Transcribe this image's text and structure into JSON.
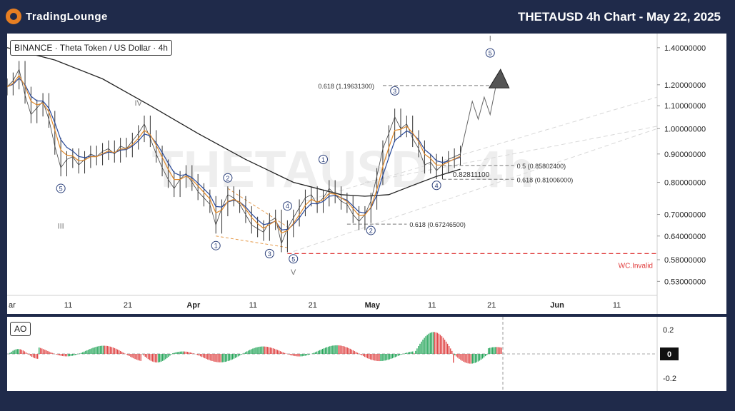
{
  "header": {
    "brand": "TradingLounge",
    "title": "THETAUSD 4h Chart - May 22, 2025"
  },
  "symbol_label": "BINANCE · Theta Token / US Dollar · 4h",
  "watermark": "THETAUSD · 4h",
  "indicator_label": "AO",
  "chart_data": {
    "type": "line",
    "title": "THETAUSD 4h Chart - May 22, 2025",
    "scale": "log",
    "ylim": [
      0.5,
      1.45
    ],
    "y_ticks": [
      "1.40000000",
      "1.20000000",
      "1.10000000",
      "1.00000000",
      "0.90000000",
      "0.80000000",
      "0.70000000",
      "0.64000000",
      "0.58000000",
      "0.53000000"
    ],
    "y_tick_values": [
      1.4,
      1.2,
      1.1,
      1.0,
      0.9,
      0.8,
      0.7,
      0.64,
      0.58,
      0.53
    ],
    "x_ticks": [
      "ar",
      "11",
      "21",
      "Apr",
      "11",
      "21",
      "May",
      "11",
      "21",
      "Jun",
      "11"
    ],
    "x_tick_days": [
      0,
      10,
      20,
      31,
      41,
      51,
      61,
      71,
      81,
      92,
      102
    ],
    "xlim_days": [
      0,
      109
    ],
    "series": [
      {
        "values_note": "close",
        "points": [
          [
            0,
            1.19
          ],
          [
            1,
            1.22
          ],
          [
            2,
            1.28
          ],
          [
            3,
            1.15
          ],
          [
            4,
            1.06
          ],
          [
            5,
            1.09
          ],
          [
            6,
            1.12
          ],
          [
            7,
            1.04
          ],
          [
            8,
            0.93
          ],
          [
            9,
            0.85
          ],
          [
            10,
            0.88
          ],
          [
            11,
            0.89
          ],
          [
            12,
            0.86
          ],
          [
            13,
            0.88
          ],
          [
            14,
            0.9
          ],
          [
            15,
            0.89
          ],
          [
            16,
            0.91
          ],
          [
            17,
            0.92
          ],
          [
            18,
            0.9
          ],
          [
            19,
            0.93
          ],
          [
            20,
            0.92
          ],
          [
            21,
            0.95
          ],
          [
            22,
            0.98
          ],
          [
            23,
            1.02
          ],
          [
            24,
            0.96
          ],
          [
            25,
            0.9
          ],
          [
            26,
            0.85
          ],
          [
            27,
            0.81
          ],
          [
            28,
            0.78
          ],
          [
            29,
            0.81
          ],
          [
            30,
            0.83
          ],
          [
            31,
            0.8
          ],
          [
            32,
            0.77
          ],
          [
            33,
            0.75
          ],
          [
            34,
            0.73
          ],
          [
            35,
            0.67
          ],
          [
            36,
            0.72
          ],
          [
            37,
            0.76
          ],
          [
            38,
            0.75
          ],
          [
            39,
            0.73
          ],
          [
            40,
            0.7
          ],
          [
            41,
            0.67
          ],
          [
            42,
            0.66
          ],
          [
            43,
            0.65
          ],
          [
            44,
            0.68
          ],
          [
            45,
            0.69
          ],
          [
            46,
            0.62
          ],
          [
            47,
            0.66
          ],
          [
            48,
            0.69
          ],
          [
            49,
            0.72
          ],
          [
            50,
            0.75
          ],
          [
            51,
            0.76
          ],
          [
            52,
            0.73
          ],
          [
            53,
            0.75
          ],
          [
            54,
            0.78
          ],
          [
            55,
            0.76
          ],
          [
            56,
            0.74
          ],
          [
            57,
            0.73
          ],
          [
            58,
            0.7
          ],
          [
            59,
            0.68
          ],
          [
            60,
            0.7
          ],
          [
            61,
            0.74
          ],
          [
            62,
            0.82
          ],
          [
            63,
            0.92
          ],
          [
            64,
            0.98
          ],
          [
            65,
            1.05
          ],
          [
            66,
            1.0
          ],
          [
            67,
            1.02
          ],
          [
            68,
            0.96
          ],
          [
            69,
            0.92
          ],
          [
            70,
            0.86
          ],
          [
            71,
            0.87
          ],
          [
            72,
            0.84
          ],
          [
            73,
            0.86
          ],
          [
            74,
            0.88
          ],
          [
            75,
            0.89
          ],
          [
            76,
            0.9
          ]
        ]
      },
      {
        "values_note": "moving-average-long",
        "points": [
          [
            0,
            1.4
          ],
          [
            8,
            1.33
          ],
          [
            16,
            1.23
          ],
          [
            24,
            1.1
          ],
          [
            32,
            0.98
          ],
          [
            40,
            0.88
          ],
          [
            48,
            0.8
          ],
          [
            56,
            0.76
          ],
          [
            60,
            0.755
          ],
          [
            64,
            0.76
          ],
          [
            68,
            0.79
          ],
          [
            72,
            0.82
          ],
          [
            76,
            0.845
          ]
        ]
      }
    ],
    "annotations": {
      "wave_labels": [
        {
          "text": "IV",
          "day": 22,
          "price": 1.1,
          "color": "#777777"
        },
        {
          "text": "III",
          "day": 9,
          "price": 0.66,
          "color": "#777777"
        },
        {
          "text": "V",
          "day": 48,
          "price": 0.545,
          "color": "#777777"
        },
        {
          "text": "I",
          "day": 81,
          "price": 1.44,
          "color": "#777777"
        }
      ],
      "circled_labels": [
        {
          "text": "5",
          "day": 9,
          "price": 0.78
        },
        {
          "text": "1",
          "day": 35,
          "price": 0.615
        },
        {
          "text": "2",
          "day": 37,
          "price": 0.815
        },
        {
          "text": "3",
          "day": 44,
          "price": 0.595
        },
        {
          "text": "4",
          "day": 47,
          "price": 0.725
        },
        {
          "text": "5",
          "day": 48,
          "price": 0.582
        },
        {
          "text": "1",
          "day": 53,
          "price": 0.88
        },
        {
          "text": "2",
          "day": 61,
          "price": 0.655
        },
        {
          "text": "3",
          "day": 65,
          "price": 1.17
        },
        {
          "text": "4",
          "day": 72,
          "price": 0.79
        },
        {
          "text": "5",
          "day": 81,
          "price": 1.37
        }
      ],
      "fib_levels": [
        {
          "text": "0.618 (1.19631300)",
          "price": 1.196313,
          "day_start": 63,
          "day_end": 81
        },
        {
          "text": "0.5 (0.85802400)",
          "price": 0.858024,
          "day_start": 73,
          "day_end": 85
        },
        {
          "text": "0.618 (0.81006000)",
          "price": 0.81006,
          "day_start": 73,
          "day_end": 85
        },
        {
          "text": "0.618 (0.67246500)",
          "price": 0.672465,
          "day_start": 57,
          "day_end": 67
        }
      ],
      "price_label": {
        "text": "0.82811100",
        "price": 0.828111
      },
      "invalidation": {
        "text": "WC.Invalid",
        "price": 0.595
      }
    }
  },
  "ao_chart": {
    "type": "bar",
    "ylim": [
      -0.25,
      0.25
    ],
    "y_ticks": [
      "0.2",
      "0",
      "-0.2"
    ],
    "y_tick_values": [
      0.2,
      0,
      -0.2
    ],
    "current_value_label": "0"
  }
}
